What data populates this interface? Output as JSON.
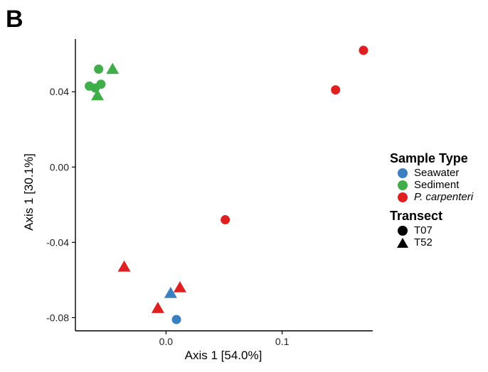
{
  "panel_label": "B",
  "chart_data": {
    "type": "scatter",
    "xlabel": "Axis 1 [54.0%]",
    "ylabel": "Axis 1 [30.1%]",
    "xlim": [
      -0.078,
      0.178
    ],
    "ylim": [
      -0.087,
      0.068
    ],
    "x_ticks": [
      0.0,
      0.1
    ],
    "x_tick_labels": [
      "0.0",
      "0.1"
    ],
    "y_ticks": [
      0.04,
      0.0,
      -0.04,
      -0.08
    ],
    "y_tick_labels": [
      "0.04",
      "0.00",
      "-0.04",
      "-0.08"
    ],
    "grid": false,
    "colors": {
      "Seawater": "#3a7fc1",
      "Sediment": "#3fae49",
      "P. carpenteri": "#e02020"
    },
    "points": [
      {
        "x": -0.058,
        "y": 0.052,
        "sample_type": "Sediment",
        "transect": "T07"
      },
      {
        "x": -0.046,
        "y": 0.052,
        "sample_type": "Sediment",
        "transect": "T52"
      },
      {
        "x": -0.066,
        "y": 0.043,
        "sample_type": "Sediment",
        "transect": "T07"
      },
      {
        "x": -0.061,
        "y": 0.042,
        "sample_type": "Sediment",
        "transect": "T07"
      },
      {
        "x": -0.056,
        "y": 0.044,
        "sample_type": "Sediment",
        "transect": "T07"
      },
      {
        "x": -0.059,
        "y": 0.038,
        "sample_type": "Sediment",
        "transect": "T52"
      },
      {
        "x": 0.17,
        "y": 0.062,
        "sample_type": "P. carpenteri",
        "transect": "T07"
      },
      {
        "x": 0.146,
        "y": 0.041,
        "sample_type": "P. carpenteri",
        "transect": "T07"
      },
      {
        "x": 0.051,
        "y": -0.028,
        "sample_type": "P. carpenteri",
        "transect": "T07"
      },
      {
        "x": -0.036,
        "y": -0.053,
        "sample_type": "P. carpenteri",
        "transect": "T52"
      },
      {
        "x": 0.012,
        "y": -0.064,
        "sample_type": "P. carpenteri",
        "transect": "T52"
      },
      {
        "x": -0.007,
        "y": -0.075,
        "sample_type": "P. carpenteri",
        "transect": "T52"
      },
      {
        "x": 0.004,
        "y": -0.067,
        "sample_type": "Seawater",
        "transect": "T52"
      },
      {
        "x": 0.009,
        "y": -0.081,
        "sample_type": "Seawater",
        "transect": "T07"
      }
    ]
  },
  "legend": {
    "sample_type_title": "Sample Type",
    "sample_types": [
      {
        "label": "Seawater",
        "color": "#3a7fc1"
      },
      {
        "label": "Sediment",
        "color": "#3fae49"
      },
      {
        "label": "P. carpenteri",
        "color": "#e02020",
        "italic": true
      }
    ],
    "transect_title": "Transect",
    "transects": [
      {
        "label": "T07",
        "shape": "circle"
      },
      {
        "label": "T52",
        "shape": "triangle"
      }
    ]
  }
}
